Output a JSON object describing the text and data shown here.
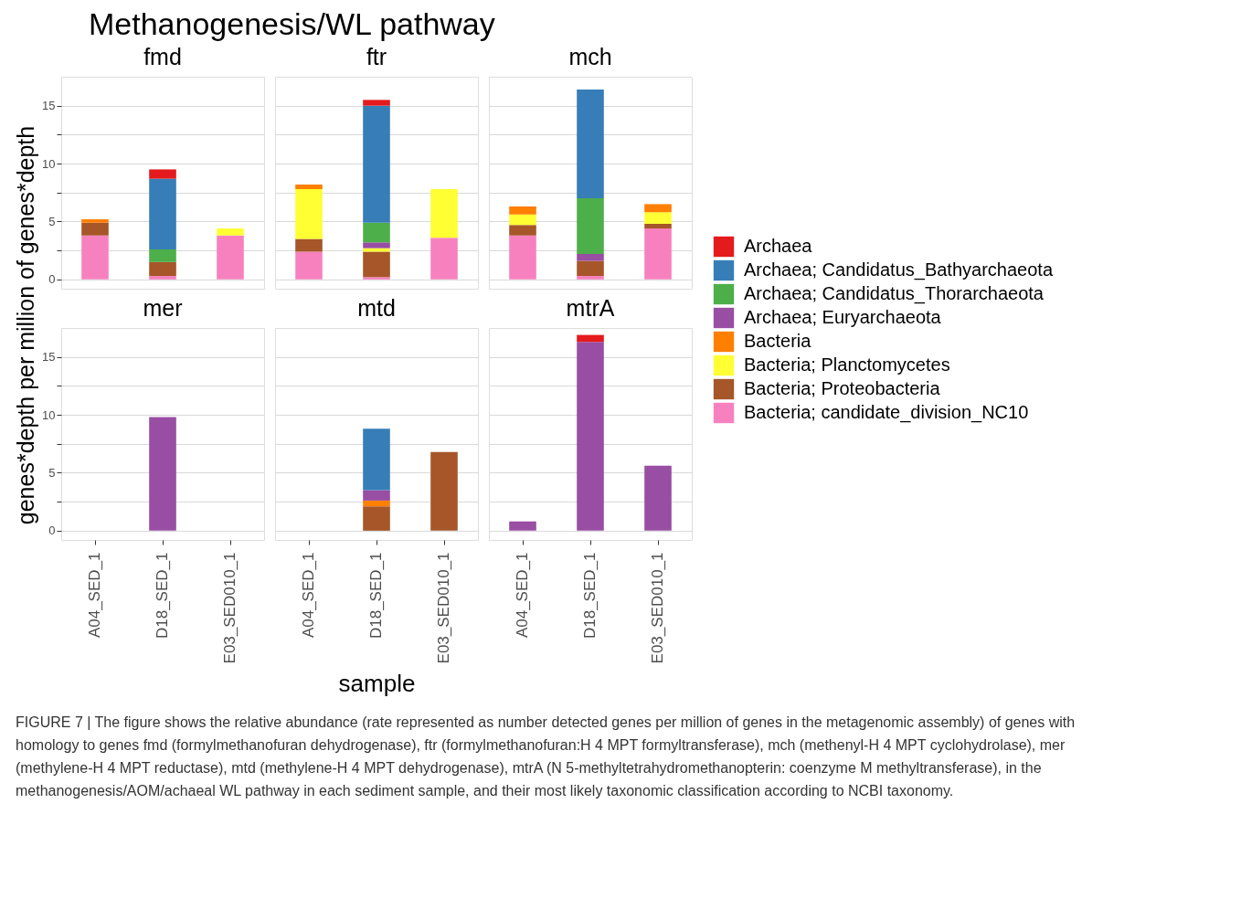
{
  "chart_data": [
    {
      "type": "bar",
      "title": "fmd",
      "stacked": true,
      "grid": true,
      "tick_labels": "y",
      "legend": "right",
      "ylabel": "genes*depth per million of genes*depth",
      "ylim": [
        -0.8,
        17.5
      ],
      "yticks": [
        0,
        {
          "value": 2.5,
          "label": null
        },
        5,
        {
          "value": 7.5,
          "label": null
        },
        10,
        {
          "value": 12.5,
          "label": null
        },
        15
      ],
      "categories": [
        "A04_SED_1",
        "D18_SED_1",
        "E03_SED010_1"
      ],
      "annotations": [
        "Methanogenesis/WL pathway",
        "FIGURE 7 | The figure shows the relative abundance (rate represented as number detected genes per million of genes in the metagenomic assembly) of genes with homology to genes fmd (formylmethanofuran dehydrogenase), ftr (formylmethanofuran:H 4 MPT formyltransferase), mch (methenyl-H 4 MPT cyclohydrolase), mer (methylene-H 4 MPT reductase), mtd (methylene-H 4 MPT dehydrogenase), mtrA (N 5-methyltetrahydromethanopterin: coenzyme M methyltransferase), in the methanogenesis/AOM/achaeal WL pathway in each sediment sample, and their most likely taxonomic classification according to NCBI taxonomy."
      ],
      "series": [
        {
          "name": "Bacteria; candidate_division_NC10",
          "color": "#f781bf",
          "values": [
            3.8,
            0.3,
            3.8
          ]
        },
        {
          "name": "Bacteria; Proteobacteria",
          "color": "#a65628",
          "values": [
            1.1,
            1.2,
            null
          ]
        },
        {
          "name": "Bacteria; Planctomycetes",
          "color": "#ffff33",
          "values": [
            null,
            null,
            0.6
          ]
        },
        {
          "name": "Bacteria",
          "color": "#ff7f00",
          "values": [
            0.3,
            null,
            null
          ]
        },
        {
          "name": "Archaea; Candidatus_Thorarchaeota",
          "color": "#4daf4a",
          "values": [
            null,
            1.1,
            null
          ]
        },
        {
          "name": "Archaea; Candidatus_Bathyarchaeota",
          "color": "#377eb8",
          "values": [
            null,
            6.1,
            null
          ]
        },
        {
          "name": "Archaea",
          "color": "#e41a1c",
          "values": [
            null,
            0.8,
            null
          ]
        }
      ]
    },
    {
      "type": "bar",
      "title": "ftr",
      "stacked": true,
      "grid": true,
      "tick_labels": false,
      "ylim": [
        -0.8,
        17.5
      ],
      "yticks": [
        0,
        {
          "value": 2.5,
          "label": null
        },
        5,
        {
          "value": 7.5,
          "label": null
        },
        10,
        {
          "value": 12.5,
          "label": null
        },
        15
      ],
      "categories": [
        "A04_SED_1",
        "D18_SED_1",
        "E03_SED010_1"
      ],
      "series": [
        {
          "name": "Bacteria; candidate_division_NC10",
          "color": "#f781bf",
          "values": [
            2.4,
            0.2,
            3.6
          ]
        },
        {
          "name": "Bacteria; Proteobacteria",
          "color": "#a65628",
          "values": [
            1.1,
            2.2,
            null
          ]
        },
        {
          "name": "Bacteria; Planctomycetes",
          "color": "#ffff33",
          "values": [
            4.3,
            0.3,
            4.2
          ]
        },
        {
          "name": "Bacteria",
          "color": "#ff7f00",
          "values": [
            0.4,
            null,
            null
          ]
        },
        {
          "name": "Archaea; Euryarchaeota",
          "color": "#984ea3",
          "values": [
            null,
            0.5,
            null
          ]
        },
        {
          "name": "Archaea; Candidatus_Thorarchaeota",
          "color": "#4daf4a",
          "values": [
            null,
            1.7,
            null
          ]
        },
        {
          "name": "Archaea; Candidatus_Bathyarchaeota",
          "color": "#377eb8",
          "values": [
            null,
            10.1,
            null
          ]
        },
        {
          "name": "Archaea",
          "color": "#e41a1c",
          "values": [
            null,
            0.5,
            null
          ]
        }
      ]
    },
    {
      "type": "bar",
      "title": "mch",
      "stacked": true,
      "grid": true,
      "tick_labels": false,
      "ylim": [
        -0.8,
        17.5
      ],
      "yticks": [
        0,
        {
          "value": 2.5,
          "label": null
        },
        5,
        {
          "value": 7.5,
          "label": null
        },
        10,
        {
          "value": 12.5,
          "label": null
        },
        15
      ],
      "categories": [
        "A04_SED_1",
        "D18_SED_1",
        "E03_SED010_1"
      ],
      "series": [
        {
          "name": "Bacteria; candidate_division_NC10",
          "color": "#f781bf",
          "values": [
            3.8,
            0.3,
            4.4
          ]
        },
        {
          "name": "Bacteria; Proteobacteria",
          "color": "#a65628",
          "values": [
            0.9,
            1.3,
            0.4
          ]
        },
        {
          "name": "Bacteria; Planctomycetes",
          "color": "#ffff33",
          "values": [
            0.9,
            null,
            1.0
          ]
        },
        {
          "name": "Bacteria",
          "color": "#ff7f00",
          "values": [
            0.7,
            null,
            0.7
          ]
        },
        {
          "name": "Archaea; Euryarchaeota",
          "color": "#984ea3",
          "values": [
            null,
            0.6,
            null
          ]
        },
        {
          "name": "Archaea; Candidatus_Thorarchaeota",
          "color": "#4daf4a",
          "values": [
            null,
            4.8,
            null
          ]
        },
        {
          "name": "Archaea; Candidatus_Bathyarchaeota",
          "color": "#377eb8",
          "values": [
            null,
            9.4,
            null
          ]
        }
      ]
    },
    {
      "type": "bar",
      "title": "mer",
      "stacked": true,
      "grid": true,
      "ylim": [
        -0.8,
        17.5
      ],
      "yticks": [
        0,
        {
          "value": 2.5,
          "label": null
        },
        5,
        {
          "value": 7.5,
          "label": null
        },
        10,
        {
          "value": 12.5,
          "label": null
        },
        15
      ],
      "categories": [
        "A04_SED_1",
        "D18_SED_1",
        "E03_SED010_1"
      ],
      "series": [
        {
          "name": "Archaea; Euryarchaeota",
          "color": "#984ea3",
          "values": [
            null,
            9.8,
            null
          ]
        }
      ]
    },
    {
      "type": "bar",
      "title": "mtd",
      "stacked": true,
      "grid": true,
      "tick_labels": "x",
      "xlabel": "sample",
      "ylim": [
        -0.8,
        17.5
      ],
      "yticks": [
        0,
        {
          "value": 2.5,
          "label": null
        },
        5,
        {
          "value": 7.5,
          "label": null
        },
        10,
        {
          "value": 12.5,
          "label": null
        },
        15
      ],
      "categories": [
        "A04_SED_1",
        "D18_SED_1",
        "E03_SED010_1"
      ],
      "series": [
        {
          "name": "Bacteria; Proteobacteria",
          "color": "#a65628",
          "values": [
            null,
            2.1,
            6.8
          ]
        },
        {
          "name": "Bacteria",
          "color": "#ff7f00",
          "values": [
            null,
            0.5,
            null
          ]
        },
        {
          "name": "Archaea; Euryarchaeota",
          "color": "#984ea3",
          "values": [
            null,
            0.9,
            null
          ]
        },
        {
          "name": "Archaea; Candidatus_Bathyarchaeota",
          "color": "#377eb8",
          "values": [
            null,
            5.3,
            null
          ]
        }
      ]
    },
    {
      "type": "bar",
      "title": "mtrA",
      "stacked": true,
      "grid": true,
      "tick_labels": "x",
      "ylim": [
        -0.8,
        17.5
      ],
      "yticks": [
        0,
        {
          "value": 2.5,
          "label": null
        },
        5,
        {
          "value": 7.5,
          "label": null
        },
        10,
        {
          "value": 12.5,
          "label": null
        },
        15
      ],
      "categories": [
        "A04_SED_1",
        "D18_SED_1",
        "E03_SED010_1"
      ],
      "series": [
        {
          "name": "Archaea; Euryarchaeota",
          "color": "#984ea3",
          "values": [
            0.8,
            16.3,
            5.6
          ]
        },
        {
          "name": "Archaea",
          "color": "#e41a1c",
          "values": [
            null,
            0.6,
            null
          ]
        }
      ]
    }
  ]
}
